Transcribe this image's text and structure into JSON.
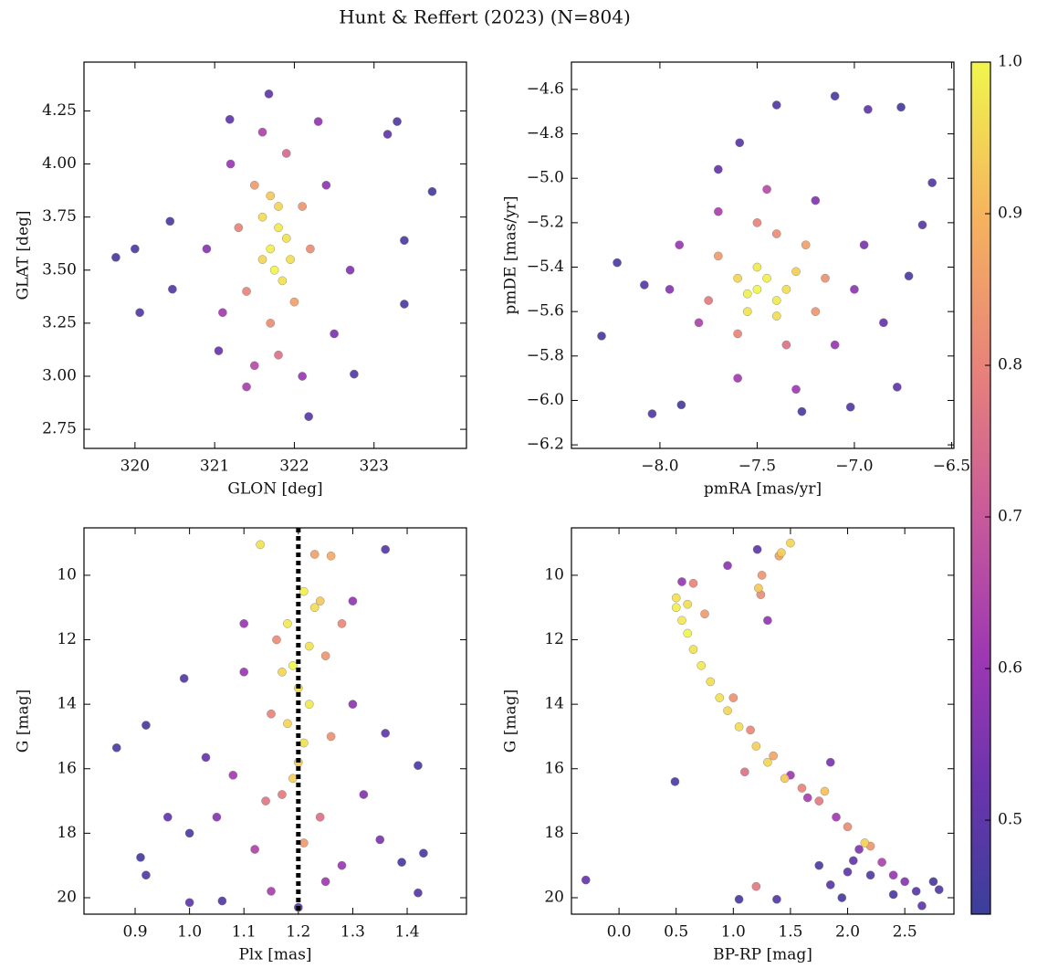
{
  "title": "Hunt & Reffert (2023) (N=804)",
  "colorbar": {
    "clim": [
      0.438,
      1.0
    ],
    "ticks": [
      0.5,
      0.6,
      0.7,
      0.8,
      0.9,
      {
        "value": 1.0,
        "label": "1.0"
      }
    ]
  },
  "chart_data": [
    {
      "type": "scatter",
      "xlabel": "GLON [deg]",
      "ylabel": "GLAT [deg]",
      "xlim": [
        319.36,
        324.16
      ],
      "ylim": [
        2.66,
        4.48
      ],
      "xticks": [
        320,
        321,
        322,
        323
      ],
      "yticks": [
        2.75,
        {
          "value": 3.0,
          "label": "3.00"
        },
        3.25,
        {
          "value": 3.5,
          "label": "3.50"
        },
        3.75,
        {
          "value": 4.0,
          "label": "4.00"
        },
        4.25
      ],
      "x": [
        319.76,
        320.0,
        320.06,
        320.44,
        320.47,
        321.68,
        323.29,
        323.73,
        323.38,
        322.75,
        322.18,
        323.17,
        321.05,
        321.19,
        323.38,
        321.2,
        322.4,
        321.1,
        322.5,
        321.6,
        322.1,
        321.5,
        322.7,
        320.9,
        322.3,
        321.4,
        321.5,
        322.0,
        321.7,
        322.1,
        321.4,
        321.8,
        321.9,
        321.3,
        322.2,
        321.7,
        321.8,
        321.75,
        321.9,
        321.6,
        321.85,
        321.8,
        321.6,
        321.95,
        321.7
      ],
      "y": [
        3.56,
        3.6,
        3.3,
        3.73,
        3.41,
        4.33,
        4.2,
        3.87,
        3.64,
        3.01,
        2.81,
        4.14,
        3.12,
        4.21,
        3.34,
        4.0,
        3.9,
        3.3,
        3.2,
        4.15,
        3.0,
        3.05,
        3.5,
        3.6,
        4.2,
        2.95,
        3.9,
        3.35,
        3.25,
        3.8,
        3.4,
        3.1,
        4.05,
        3.7,
        3.6,
        3.6,
        3.7,
        3.5,
        3.65,
        3.75,
        3.45,
        3.8,
        3.55,
        3.55,
        3.85
      ],
      "c": [
        0.46,
        0.47,
        0.48,
        0.47,
        0.49,
        0.5,
        0.48,
        0.46,
        0.47,
        0.48,
        0.49,
        0.5,
        0.52,
        0.51,
        0.47,
        0.6,
        0.58,
        0.62,
        0.55,
        0.64,
        0.6,
        0.66,
        0.56,
        0.57,
        0.59,
        0.63,
        0.85,
        0.86,
        0.82,
        0.84,
        0.8,
        0.76,
        0.74,
        0.8,
        0.82,
        0.99,
        0.98,
        1.0,
        0.97,
        0.96,
        0.97,
        0.95,
        0.95,
        0.96,
        0.93
      ]
    },
    {
      "type": "scatter",
      "xlabel": "pmRA [mas/yr]",
      "ylabel": "pmDE [mas/yr]",
      "xlim": [
        -8.455,
        -6.488
      ],
      "ylim": [
        -6.216,
        -4.477
      ],
      "xticks": [
        {
          "value": -8.0,
          "label": "−8.0"
        },
        {
          "value": -7.5,
          "label": "−7.5"
        },
        {
          "value": -7.0,
          "label": "−7.0"
        },
        {
          "value": -6.5,
          "label": "−6.5"
        }
      ],
      "yticks": [
        {
          "value": -6.2,
          "label": "−6.2"
        },
        {
          "value": -6.0,
          "label": "−6.0"
        },
        {
          "value": -5.8,
          "label": "−5.8"
        },
        {
          "value": -5.6,
          "label": "−5.6"
        },
        {
          "value": -5.4,
          "label": "−5.4"
        },
        {
          "value": -5.2,
          "label": "−5.2"
        },
        {
          "value": -5.0,
          "label": "−5.0"
        },
        {
          "value": -4.8,
          "label": "−4.8"
        },
        {
          "value": -4.6,
          "label": "−4.6"
        }
      ],
      "x": [
        -8.3,
        -8.22,
        -8.04,
        -7.89,
        -7.59,
        -7.4,
        -7.1,
        -6.93,
        -6.76,
        -6.6,
        -6.65,
        -6.72,
        -6.78,
        -7.02,
        -7.27,
        -7.7,
        -8.08,
        -6.85,
        -7.9,
        -7.0,
        -7.6,
        -7.2,
        -7.8,
        -7.1,
        -7.45,
        -7.95,
        -6.95,
        -7.3,
        -7.7,
        -7.7,
        -7.2,
        -7.4,
        -7.6,
        -7.25,
        -7.75,
        -7.35,
        -7.15,
        -7.5,
        -7.5,
        -7.45,
        -7.4,
        -7.55,
        -7.35,
        -7.5,
        -7.6,
        -7.4,
        -7.3,
        -7.55
      ],
      "y": [
        -5.71,
        -5.38,
        -6.06,
        -6.02,
        -4.84,
        -4.67,
        -4.63,
        -4.69,
        -4.68,
        -5.02,
        -5.21,
        -5.44,
        -5.94,
        -6.03,
        -6.05,
        -4.96,
        -5.48,
        -5.65,
        -5.3,
        -5.5,
        -5.9,
        -5.1,
        -5.65,
        -5.75,
        -5.05,
        -5.5,
        -5.3,
        -5.95,
        -5.15,
        -5.35,
        -5.6,
        -5.25,
        -5.7,
        -5.3,
        -5.55,
        -5.75,
        -5.45,
        -5.2,
        -5.5,
        -5.45,
        -5.55,
        -5.6,
        -5.5,
        -5.4,
        -5.45,
        -5.62,
        -5.42,
        -5.52
      ],
      "c": [
        0.46,
        0.47,
        0.48,
        0.46,
        0.49,
        0.48,
        0.47,
        0.5,
        0.46,
        0.48,
        0.49,
        0.47,
        0.5,
        0.48,
        0.47,
        0.51,
        0.49,
        0.52,
        0.6,
        0.58,
        0.62,
        0.56,
        0.64,
        0.6,
        0.66,
        0.57,
        0.55,
        0.61,
        0.63,
        0.85,
        0.84,
        0.82,
        0.8,
        0.86,
        0.78,
        0.76,
        0.83,
        0.8,
        1.0,
        0.99,
        0.98,
        0.97,
        0.96,
        0.98,
        0.95,
        0.96,
        0.94,
        0.99
      ]
    },
    {
      "type": "scatter",
      "xlabel": "Plx [mas]",
      "ylabel": "G [mag]",
      "xlim": [
        0.806,
        1.509
      ],
      "ylim": [
        20.51,
        8.53
      ],
      "vline": 1.2,
      "xticks": [
        0.9,
        {
          "value": 1.0,
          "label": "1.0"
        },
        1.1,
        1.2,
        1.3,
        1.4
      ],
      "yticks": [
        10,
        12,
        14,
        16,
        18,
        20
      ],
      "x": [
        0.866,
        0.92,
        0.99,
        1.36,
        1.42,
        1.36,
        0.91,
        0.92,
        1.43,
        1.42,
        1.0,
        1.06,
        0.96,
        1.0,
        1.39,
        1.03,
        1.2,
        1.1,
        1.3,
        1.08,
        1.32,
        1.12,
        1.28,
        1.05,
        1.35,
        1.15,
        1.25,
        1.3,
        1.1,
        1.26,
        1.23,
        1.16,
        1.25,
        1.15,
        1.26,
        1.17,
        1.24,
        1.21,
        1.14,
        1.28,
        1.21,
        1.18,
        1.22,
        1.19,
        1.2,
        1.22,
        1.18,
        1.21,
        1.2,
        1.23,
        1.17,
        1.13,
        1.24,
        1.19
      ],
      "y": [
        15.35,
        14.65,
        13.2,
        9.2,
        15.9,
        14.9,
        18.75,
        19.3,
        18.62,
        19.85,
        20.15,
        20.1,
        17.5,
        18.0,
        18.9,
        15.65,
        20.3,
        13.0,
        14.0,
        16.2,
        16.8,
        18.5,
        19.0,
        17.5,
        18.2,
        19.8,
        19.5,
        10.8,
        11.5,
        9.4,
        9.35,
        12.0,
        12.5,
        14.3,
        15.0,
        16.8,
        17.5,
        18.3,
        17.0,
        11.5,
        10.5,
        11.5,
        12.2,
        12.8,
        13.5,
        14.0,
        14.6,
        15.2,
        15.8,
        11.0,
        13.0,
        9.05,
        10.8,
        16.3
      ],
      "c": [
        0.47,
        0.46,
        0.48,
        0.49,
        0.47,
        0.5,
        0.46,
        0.48,
        0.47,
        0.49,
        0.5,
        0.48,
        0.51,
        0.47,
        0.46,
        0.52,
        0.49,
        0.6,
        0.58,
        0.62,
        0.56,
        0.64,
        0.6,
        0.57,
        0.55,
        0.63,
        0.61,
        0.59,
        0.6,
        0.88,
        0.86,
        0.82,
        0.84,
        0.8,
        0.83,
        0.78,
        0.76,
        0.85,
        0.77,
        0.81,
        0.99,
        0.98,
        0.97,
        1.0,
        0.96,
        0.98,
        0.95,
        0.97,
        0.94,
        0.96,
        0.95,
        0.97,
        0.93,
        0.94
      ]
    },
    {
      "type": "scatter",
      "xlabel": "BP-RP [mag]",
      "ylabel": "G [mag]",
      "xlim": [
        -0.416,
        2.93
      ],
      "ylim": [
        20.51,
        8.53
      ],
      "xticks": [
        {
          "value": 0.0,
          "label": "0.0"
        },
        0.5,
        {
          "value": 1.0,
          "label": "1.0"
        },
        1.5,
        {
          "value": 2.0,
          "label": "2.0"
        },
        2.5
      ],
      "yticks": [
        10,
        12,
        14,
        16,
        18,
        20
      ],
      "x": [
        -0.29,
        0.49,
        1.21,
        1.05,
        1.38,
        1.75,
        1.85,
        1.95,
        2.0,
        2.2,
        2.4,
        2.6,
        2.75,
        2.8,
        2.65,
        2.05,
        0.55,
        0.95,
        1.9,
        2.1,
        2.3,
        2.4,
        1.65,
        2.5,
        1.85,
        1.5,
        1.3,
        1.4,
        1.25,
        1.24,
        0.65,
        0.75,
        1.0,
        1.15,
        1.35,
        1.6,
        1.75,
        2.0,
        2.2,
        1.1,
        1.2,
        0.5,
        0.55,
        0.6,
        0.65,
        0.72,
        0.8,
        0.88,
        0.95,
        1.05,
        1.2,
        1.3,
        1.45,
        0.5,
        0.6,
        1.5,
        1.42,
        1.22,
        1.8,
        2.15
      ],
      "y": [
        19.45,
        16.4,
        9.2,
        20.05,
        20.05,
        19.0,
        19.6,
        20.0,
        19.2,
        19.3,
        19.9,
        19.8,
        19.5,
        19.75,
        20.25,
        18.85,
        10.2,
        9.7,
        17.5,
        18.5,
        18.9,
        19.3,
        16.9,
        19.5,
        15.8,
        16.2,
        11.4,
        9.4,
        10.0,
        10.6,
        10.25,
        11.2,
        13.8,
        14.8,
        15.6,
        16.6,
        17.0,
        17.8,
        18.4,
        16.1,
        19.65,
        11.0,
        11.4,
        11.8,
        12.3,
        12.8,
        13.3,
        13.8,
        14.2,
        14.7,
        15.3,
        15.8,
        16.3,
        10.7,
        10.9,
        9.0,
        9.3,
        10.4,
        16.7,
        18.3
      ],
      "c": [
        0.52,
        0.47,
        0.5,
        0.46,
        0.48,
        0.47,
        0.49,
        0.46,
        0.5,
        0.48,
        0.47,
        0.49,
        0.46,
        0.48,
        0.5,
        0.51,
        0.6,
        0.58,
        0.62,
        0.56,
        0.64,
        0.6,
        0.63,
        0.57,
        0.55,
        0.61,
        0.59,
        0.86,
        0.84,
        0.82,
        0.8,
        0.85,
        0.83,
        0.81,
        0.87,
        0.8,
        0.78,
        0.82,
        0.84,
        0.76,
        0.78,
        0.99,
        0.98,
        1.0,
        0.97,
        0.98,
        0.96,
        0.97,
        0.95,
        0.96,
        0.94,
        0.95,
        0.93,
        0.97,
        0.96,
        0.95,
        0.94,
        0.93,
        0.92,
        0.94
      ]
    }
  ]
}
